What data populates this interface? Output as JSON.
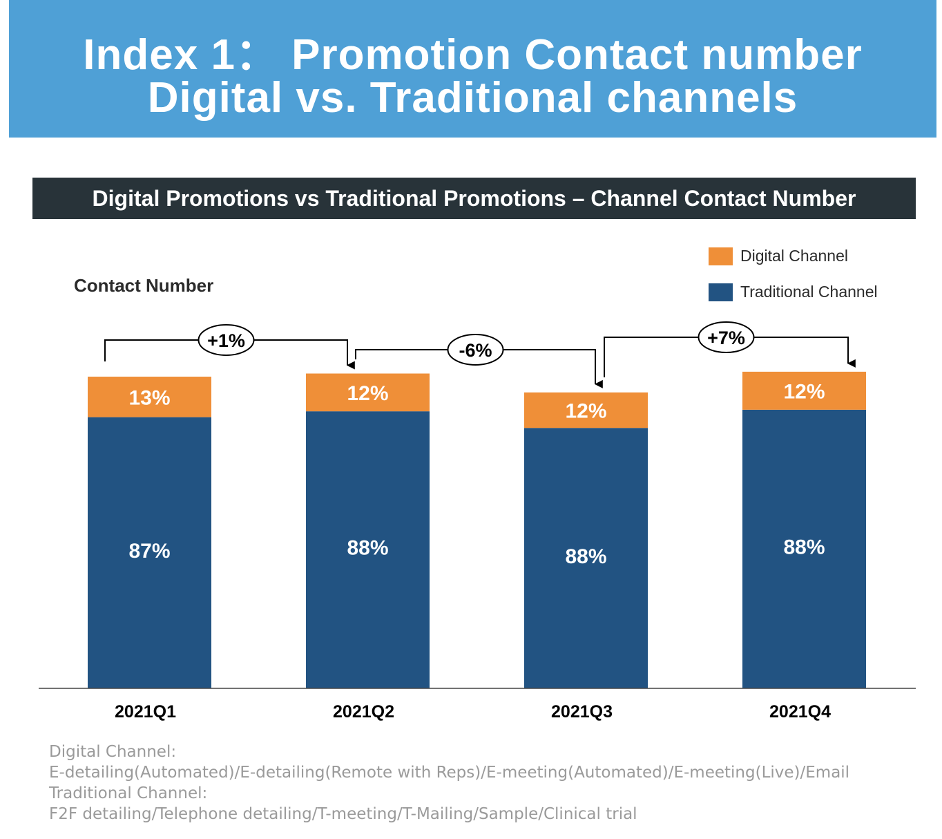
{
  "header": {
    "line1": "Index 1：  Promotion Contact number",
    "line2": "Digital vs. Traditional channels"
  },
  "colors": {
    "banner": "#4fa0d6",
    "digital": "#ef8f38",
    "traditional": "#225382",
    "title_bar": "#283339"
  },
  "chart_data": {
    "type": "bar",
    "stacked": true,
    "title": "Digital Promotions vs Traditional Promotions – Channel Contact Number",
    "ylabel": "Contact Number",
    "xlabel": "",
    "categories": [
      "2021Q1",
      "2021Q2",
      "2021Q3",
      "2021Q4"
    ],
    "relative_total": [
      100,
      101,
      94.94,
      101.58
    ],
    "series": [
      {
        "name": "Traditional Channel",
        "color": "#225382",
        "values": [
          87,
          88,
          88,
          88
        ],
        "labels": [
          "87%",
          "88%",
          "88%",
          "88%"
        ]
      },
      {
        "name": "Digital Channel",
        "color": "#ef8f38",
        "values": [
          13,
          12,
          12,
          12
        ],
        "labels": [
          "13%",
          "12%",
          "12%",
          "12%"
        ]
      }
    ],
    "changes": [
      {
        "from": "2021Q1",
        "to": "2021Q2",
        "label": "+1%"
      },
      {
        "from": "2021Q2",
        "to": "2021Q3",
        "label": "-6%"
      },
      {
        "from": "2021Q3",
        "to": "2021Q4",
        "label": "+7%"
      }
    ],
    "legend": {
      "position": "top-right",
      "items": [
        "Digital Channel",
        "Traditional Channel"
      ]
    }
  },
  "notes": {
    "digital_heading": "Digital Channel:",
    "digital_list": "E-detailing(Automated)/E-detailing(Remote with Reps)/E-meeting(Automated)/E-meeting(Live)/Email",
    "traditional_heading": "Traditional Channel:",
    "traditional_list": "F2F detailing/Telephone detailing/T-meeting/T-Mailing/Sample/Clinical trial"
  }
}
